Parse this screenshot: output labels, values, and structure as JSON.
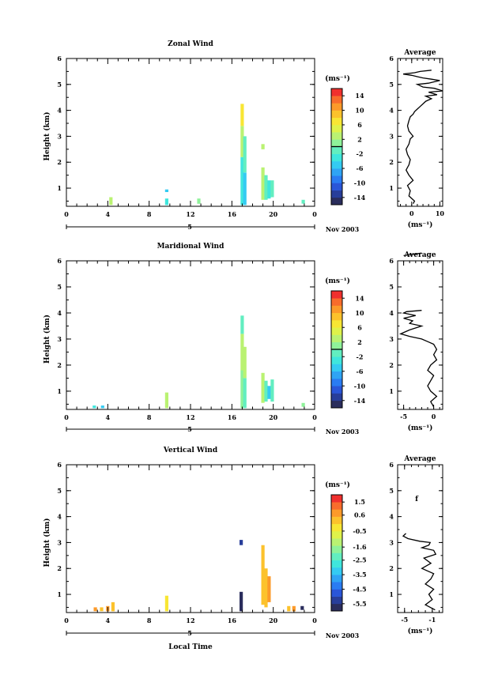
{
  "chart_data": [
    {
      "type": "heatmap",
      "title": "Zonal Wind",
      "ylabel": "Height (km)",
      "xlabel": "",
      "xlim": [
        0,
        24
      ],
      "ylim": [
        0.3,
        6
      ],
      "x_ticks": [
        "0",
        "4",
        "8",
        "12",
        "16",
        "20",
        "0"
      ],
      "x_tick_values": [
        0,
        4,
        8,
        12,
        16,
        20,
        24
      ],
      "y_ticks": [
        "1",
        "2",
        "3",
        "4",
        "5",
        "6"
      ],
      "day_label": "5",
      "date_label": "Nov 2003",
      "colorbar": {
        "unit": "(ms⁻¹)",
        "min": -16,
        "max": 16,
        "ticks": [
          "14",
          "10",
          "6",
          "2",
          "-2",
          "-6",
          "-10",
          "-14"
        ],
        "zero_line": 0
      },
      "cells": [
        {
          "x": 4.3,
          "y0": 0.35,
          "y1": 0.65,
          "v": 2
        },
        {
          "x": 9.7,
          "y0": 0.35,
          "y1": 0.6,
          "v": -4
        },
        {
          "x": 9.7,
          "y0": 0.85,
          "y1": 0.95,
          "v": -6
        },
        {
          "x": 12.8,
          "y0": 0.4,
          "y1": 0.6,
          "v": 1
        },
        {
          "x": 17.0,
          "y0": 0.35,
          "y1": 2.2,
          "v": -4
        },
        {
          "x": 17.0,
          "y0": 2.2,
          "y1": 3.4,
          "v": 2
        },
        {
          "x": 17.0,
          "y0": 3.4,
          "y1": 4.25,
          "v": 6
        },
        {
          "x": 17.25,
          "y0": 0.35,
          "y1": 1.6,
          "v": -6
        },
        {
          "x": 17.25,
          "y0": 1.6,
          "y1": 3.0,
          "v": -2
        },
        {
          "x": 19.0,
          "y0": 2.5,
          "y1": 2.7,
          "v": 2
        },
        {
          "x": 19.0,
          "y0": 0.55,
          "y1": 1.8,
          "v": 2
        },
        {
          "x": 19.3,
          "y0": 0.55,
          "y1": 1.5,
          "v": -2
        },
        {
          "x": 19.6,
          "y0": 0.6,
          "y1": 1.3,
          "v": -4
        },
        {
          "x": 19.9,
          "y0": 0.65,
          "y1": 1.3,
          "v": -2
        },
        {
          "x": 22.9,
          "y0": 0.4,
          "y1": 0.55,
          "v": -2
        }
      ],
      "average": {
        "title": "Average",
        "xlabel": "(ms⁻¹)",
        "xlim": [
          -5,
          11
        ],
        "x_ticks": [
          0,
          10
        ],
        "y_ticks": [
          "1",
          "2",
          "3",
          "4",
          "5",
          "6"
        ],
        "x": [
          0.5,
          1,
          -1,
          -0.5,
          -1.5,
          0.5,
          -1,
          -2,
          -1,
          -0.5,
          -1.5,
          -2,
          -1,
          -0.5,
          0.5,
          -1,
          -1.5,
          -1,
          -0.5,
          0.5,
          1,
          2,
          3,
          4,
          5,
          7,
          5,
          9,
          6,
          11,
          8,
          4,
          2,
          6,
          8,
          10,
          7,
          4,
          2,
          0,
          -3,
          1,
          3,
          7
        ],
        "y": [
          0.4,
          0.5,
          0.7,
          0.9,
          1.1,
          1.3,
          1.5,
          1.7,
          1.9,
          2.1,
          2.3,
          2.5,
          2.7,
          2.9,
          3.0,
          3.2,
          3.4,
          3.6,
          3.75,
          3.85,
          3.95,
          4.05,
          4.15,
          4.25,
          4.35,
          4.45,
          4.55,
          4.6,
          4.7,
          4.75,
          4.85,
          4.9,
          5.0,
          5.05,
          5.1,
          5.15,
          5.2,
          5.25,
          5.3,
          5.35,
          5.4,
          5.45,
          5.5,
          5.55
        ]
      }
    },
    {
      "type": "heatmap",
      "title": "Maridional Wind",
      "ylabel": "Height (km)",
      "xlabel": "",
      "xlim": [
        0,
        24
      ],
      "ylim": [
        0.3,
        6
      ],
      "x_ticks": [
        "0",
        "4",
        "8",
        "12",
        "16",
        "20",
        "0"
      ],
      "x_tick_values": [
        0,
        4,
        8,
        12,
        16,
        20,
        24
      ],
      "y_ticks": [
        "1",
        "2",
        "3",
        "4",
        "5",
        "6"
      ],
      "day_label": "5",
      "date_label": "Nov 2003",
      "colorbar": {
        "unit": "(ms⁻¹)",
        "min": -16,
        "max": 16,
        "ticks": [
          "14",
          "10",
          "6",
          "2",
          "-2",
          "-6",
          "-10",
          "-14"
        ],
        "zero_line": 0
      },
      "cells": [
        {
          "x": 2.7,
          "y0": 0.35,
          "y1": 0.45,
          "v": -4
        },
        {
          "x": 3.5,
          "y0": 0.35,
          "y1": 0.45,
          "v": -5
        },
        {
          "x": 9.7,
          "y0": 0.35,
          "y1": 0.95,
          "v": 2
        },
        {
          "x": 17.0,
          "y0": 0.35,
          "y1": 1.8,
          "v": 0
        },
        {
          "x": 17.0,
          "y0": 1.8,
          "y1": 3.2,
          "v": 2
        },
        {
          "x": 17.0,
          "y0": 3.2,
          "y1": 3.9,
          "v": -1
        },
        {
          "x": 17.25,
          "y0": 0.35,
          "y1": 1.5,
          "v": -2
        },
        {
          "x": 17.25,
          "y0": 1.5,
          "y1": 2.7,
          "v": 2
        },
        {
          "x": 19.0,
          "y0": 0.55,
          "y1": 1.7,
          "v": 2
        },
        {
          "x": 19.3,
          "y0": 0.6,
          "y1": 1.4,
          "v": -2
        },
        {
          "x": 19.6,
          "y0": 0.7,
          "y1": 1.2,
          "v": -6
        },
        {
          "x": 19.9,
          "y0": 0.6,
          "y1": 1.45,
          "v": -2
        },
        {
          "x": 22.9,
          "y0": 0.4,
          "y1": 0.55,
          "v": 0
        }
      ],
      "average": {
        "title": "Average",
        "xlabel": "(ms⁻¹)",
        "xlim": [
          -6,
          1.5
        ],
        "x_ticks": [
          -5,
          0
        ],
        "y_ticks": [
          "1",
          "2",
          "3",
          "4",
          "5",
          "6"
        ],
        "x": [
          0,
          -0.5,
          0.5,
          -0.5,
          -1,
          -0.5,
          0,
          -1,
          -0.5,
          0.5,
          0,
          0.5,
          0,
          -1,
          -2,
          -4,
          -5.5,
          -4,
          -2,
          -4,
          -3.5,
          -5,
          -3,
          -5,
          -4.5,
          -2,
          null,
          -5,
          -2
        ],
        "y": [
          0.4,
          0.6,
          0.8,
          1.0,
          1.2,
          1.4,
          1.6,
          1.8,
          2.0,
          2.2,
          2.4,
          2.6,
          2.8,
          2.9,
          3.0,
          3.1,
          3.2,
          3.35,
          3.5,
          3.6,
          3.7,
          3.8,
          3.9,
          4.0,
          4.05,
          4.1,
          null,
          6.2,
          6.3
        ]
      }
    },
    {
      "type": "heatmap",
      "title": "Vertical Wind",
      "ylabel": "Height (km)",
      "xlabel": "Local Time",
      "xlim": [
        0,
        24
      ],
      "ylim": [
        0.3,
        6
      ],
      "x_ticks": [
        "0",
        "4",
        "8",
        "12",
        "16",
        "20",
        "0"
      ],
      "x_tick_values": [
        0,
        4,
        8,
        12,
        16,
        20,
        24
      ],
      "y_ticks": [
        "1",
        "2",
        "3",
        "4",
        "5",
        "6"
      ],
      "day_label": "5",
      "date_label": "Nov 2003",
      "colorbar": {
        "unit": "(ms⁻¹)",
        "min": -6,
        "max": 2,
        "ticks": [
          "1.5",
          "0.6",
          "-0.5",
          "-1.6",
          "-2.5",
          "-3.5",
          "-4.5",
          "-5.5"
        ]
      },
      "cells": [
        {
          "x": 2.8,
          "y0": 0.35,
          "y1": 0.5,
          "v": 0.5
        },
        {
          "x": 3.4,
          "y0": 0.35,
          "y1": 0.5,
          "v": 0.2
        },
        {
          "x": 4.0,
          "y0": 0.35,
          "y1": 0.55,
          "v": 0.5
        },
        {
          "x": 4.5,
          "y0": 0.35,
          "y1": 0.7,
          "v": 0.3
        },
        {
          "x": 9.7,
          "y0": 0.35,
          "y1": 0.95,
          "v": -0.3
        },
        {
          "x": 16.9,
          "y0": 0.35,
          "y1": 1.1,
          "v": -5.8
        },
        {
          "x": 16.9,
          "y0": 2.9,
          "y1": 3.1,
          "v": -5.5
        },
        {
          "x": 19.0,
          "y0": 0.6,
          "y1": 2.9,
          "v": 0.4
        },
        {
          "x": 19.3,
          "y0": 0.5,
          "y1": 2.0,
          "v": 0.1
        },
        {
          "x": 19.6,
          "y0": 0.7,
          "y1": 1.7,
          "v": 0.7
        },
        {
          "x": 21.5,
          "y0": 0.35,
          "y1": 0.55,
          "v": 0.3
        },
        {
          "x": 22.0,
          "y0": 0.35,
          "y1": 0.55,
          "v": 0.6
        },
        {
          "x": 22.8,
          "y0": 0.4,
          "y1": 0.55,
          "v": -5.8
        }
      ],
      "average": {
        "title": "Average",
        "xlabel": "(ms⁻¹)",
        "xlim": [
          -6,
          0.5
        ],
        "x_ticks": [
          -5,
          -1
        ],
        "y_ticks": [
          "1",
          "2",
          "3",
          "4",
          "5",
          "6"
        ],
        "annotation": "f",
        "x": [
          -0.6,
          -2,
          -1,
          -1.5,
          -0.8,
          -2,
          -1.2,
          -0.8,
          -2.5,
          -1.2,
          -2.2,
          -0.5,
          -0.8,
          -2.5,
          -1.5,
          -1.3,
          -2.8,
          -4.5,
          -5.2,
          -4.8
        ],
        "y": [
          0.4,
          0.6,
          0.8,
          1.0,
          1.2,
          1.4,
          1.6,
          1.8,
          2.0,
          2.2,
          2.4,
          2.55,
          2.7,
          2.8,
          2.9,
          3.0,
          3.05,
          3.15,
          3.25,
          3.35
        ]
      }
    }
  ]
}
